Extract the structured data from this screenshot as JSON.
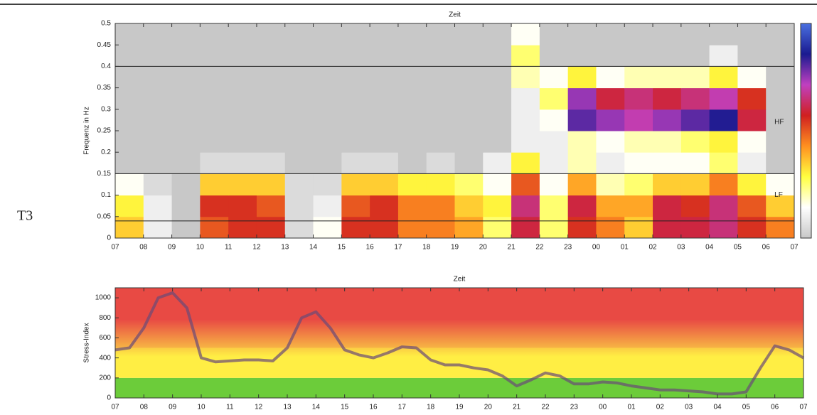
{
  "row_label": "T3",
  "chart_data": [
    {
      "type": "heatmap",
      "title": "Zeit",
      "y_label": "Frequenz in Hz",
      "xlim": [
        0,
        24
      ],
      "ylim": [
        0,
        0.5
      ],
      "xticks": [
        {
          "value": 0,
          "label": "07"
        },
        {
          "value": 1,
          "label": "08"
        },
        {
          "value": 2,
          "label": "09"
        },
        {
          "value": 3,
          "label": "10"
        },
        {
          "value": 4,
          "label": "11"
        },
        {
          "value": 5,
          "label": "12"
        },
        {
          "value": 6,
          "label": "13"
        },
        {
          "value": 7,
          "label": "14"
        },
        {
          "value": 8,
          "label": "15"
        },
        {
          "value": 9,
          "label": "16"
        },
        {
          "value": 10,
          "label": "17"
        },
        {
          "value": 11,
          "label": "18"
        },
        {
          "value": 12,
          "label": "19"
        },
        {
          "value": 13,
          "label": "20"
        },
        {
          "value": 14,
          "label": "21"
        },
        {
          "value": 15,
          "label": "22"
        },
        {
          "value": 16,
          "label": "23"
        },
        {
          "value": 17,
          "label": "00"
        },
        {
          "value": 18,
          "label": "01"
        },
        {
          "value": 19,
          "label": "02"
        },
        {
          "value": 20,
          "label": "03"
        },
        {
          "value": 21,
          "label": "04"
        },
        {
          "value": 22,
          "label": "05"
        },
        {
          "value": 23,
          "label": "06"
        },
        {
          "value": 24,
          "label": "07"
        }
      ],
      "yticks": [
        0,
        0.05,
        0.1,
        0.15,
        0.2,
        0.25,
        0.3,
        0.35,
        0.4,
        0.45,
        0.5
      ],
      "hlines": [
        0.04,
        0.15,
        0.4
      ],
      "annotations": [
        {
          "text": "HF",
          "x": 23.3,
          "y": 0.27
        },
        {
          "text": "LF",
          "x": 23.3,
          "y": 0.1
        }
      ],
      "zlim": [
        0,
        1
      ],
      "colorscale": [
        "#c8c8c8",
        "#ffffff",
        "#ffff40",
        "#ff9020",
        "#d02020",
        "#c040c0",
        "#1a1a90",
        "#4a70e0"
      ],
      "xbins": [
        0,
        1,
        2,
        3,
        4,
        5,
        6,
        7,
        8,
        9,
        10,
        11,
        12,
        13,
        14,
        15,
        16,
        17,
        18,
        19,
        20,
        21,
        22,
        23,
        24
      ],
      "ybins": [
        0,
        0.05,
        0.1,
        0.15,
        0.2,
        0.25,
        0.3,
        0.35,
        0.4,
        0.45,
        0.5
      ],
      "values": [
        [
          0.35,
          0.1,
          0,
          0.5,
          0.55,
          0.55,
          0.05,
          0.15,
          0.55,
          0.55,
          0.45,
          0.45,
          0.4,
          0.25,
          0.6,
          0.25,
          0.55,
          0.45,
          0.35,
          0.6,
          0.6,
          0.65,
          0.55,
          0.45
        ],
        [
          0.3,
          0.1,
          0,
          0.55,
          0.55,
          0.5,
          0.05,
          0.1,
          0.5,
          0.55,
          0.45,
          0.45,
          0.35,
          0.3,
          0.65,
          0.25,
          0.6,
          0.4,
          0.4,
          0.6,
          0.55,
          0.65,
          0.5,
          0.35
        ],
        [
          0.15,
          0.05,
          0,
          0.35,
          0.35,
          0.35,
          0.05,
          0.05,
          0.35,
          0.35,
          0.3,
          0.3,
          0.25,
          0.15,
          0.5,
          0.15,
          0.4,
          0.2,
          0.25,
          0.35,
          0.35,
          0.45,
          0.3,
          0.15
        ],
        [
          0,
          0,
          0,
          0.05,
          0.05,
          0.05,
          0,
          0,
          0.05,
          0.05,
          0,
          0.05,
          0,
          0.1,
          0.3,
          0.1,
          0.2,
          0.1,
          0.15,
          0.15,
          0.15,
          0.25,
          0.1,
          0
        ],
        [
          0,
          0,
          0,
          0,
          0,
          0,
          0,
          0,
          0,
          0,
          0,
          0,
          0,
          0,
          0.1,
          0.1,
          0.2,
          0.15,
          0.2,
          0.2,
          0.25,
          0.3,
          0.15,
          0
        ],
        [
          0,
          0,
          0,
          0,
          0,
          0,
          0,
          0,
          0,
          0,
          0,
          0,
          0,
          0,
          0.1,
          0.15,
          0.8,
          0.75,
          0.7,
          0.75,
          0.8,
          0.85,
          0.6,
          0
        ],
        [
          0,
          0,
          0,
          0,
          0,
          0,
          0,
          0,
          0,
          0,
          0,
          0,
          0,
          0,
          0.1,
          0.25,
          0.75,
          0.6,
          0.65,
          0.6,
          0.65,
          0.7,
          0.55,
          0
        ],
        [
          0,
          0,
          0,
          0,
          0,
          0,
          0,
          0,
          0,
          0,
          0,
          0,
          0,
          0,
          0.2,
          0.15,
          0.3,
          0.15,
          0.2,
          0.2,
          0.2,
          0.3,
          0.15,
          0
        ],
        [
          0,
          0,
          0,
          0,
          0,
          0,
          0,
          0,
          0,
          0,
          0,
          0,
          0,
          0,
          0.25,
          0,
          0,
          0,
          0,
          0,
          0,
          0.1,
          0,
          0
        ],
        [
          0,
          0,
          0,
          0,
          0,
          0,
          0,
          0,
          0,
          0,
          0,
          0,
          0,
          0,
          0.15,
          0,
          0,
          0,
          0,
          0,
          0,
          0,
          0,
          0
        ]
      ]
    },
    {
      "type": "line",
      "title": "Zeit",
      "y_label": "Stress-Index",
      "xlim": [
        0,
        24
      ],
      "ylim": [
        0,
        1100
      ],
      "xticks": [
        {
          "value": 0,
          "label": "07"
        },
        {
          "value": 1,
          "label": "08"
        },
        {
          "value": 2,
          "label": "09"
        },
        {
          "value": 3,
          "label": "10"
        },
        {
          "value": 4,
          "label": "11"
        },
        {
          "value": 5,
          "label": "12"
        },
        {
          "value": 6,
          "label": "13"
        },
        {
          "value": 7,
          "label": "14"
        },
        {
          "value": 8,
          "label": "15"
        },
        {
          "value": 9,
          "label": "16"
        },
        {
          "value": 10,
          "label": "17"
        },
        {
          "value": 11,
          "label": "18"
        },
        {
          "value": 12,
          "label": "19"
        },
        {
          "value": 13,
          "label": "20"
        },
        {
          "value": 14,
          "label": "21"
        },
        {
          "value": 15,
          "label": "22"
        },
        {
          "value": 16,
          "label": "23"
        },
        {
          "value": 17,
          "label": "00"
        },
        {
          "value": 18,
          "label": "01"
        },
        {
          "value": 19,
          "label": "02"
        },
        {
          "value": 20,
          "label": "03"
        },
        {
          "value": 21,
          "label": "04"
        },
        {
          "value": 22,
          "label": "05"
        },
        {
          "value": 23,
          "label": "06"
        },
        {
          "value": 24,
          "label": "07"
        }
      ],
      "yticks": [
        0,
        200,
        400,
        600,
        800,
        1000
      ],
      "bands": [
        {
          "from": 0,
          "to": 200,
          "color": "#6ccc3a"
        },
        {
          "from": 200,
          "to": 500,
          "color": "#ffee44"
        },
        {
          "from": 500,
          "to": 1100,
          "color": "#e84a44"
        }
      ],
      "x": [
        0,
        0.5,
        1,
        1.5,
        2,
        2.5,
        3,
        3.5,
        4,
        4.5,
        5,
        5.5,
        6,
        6.5,
        7,
        7.5,
        8,
        8.5,
        9,
        9.5,
        10,
        10.5,
        11,
        11.5,
        12,
        12.5,
        13,
        13.5,
        14,
        14.5,
        15,
        15.5,
        16,
        16.5,
        17,
        17.5,
        18,
        18.5,
        19,
        19.5,
        20,
        20.5,
        21,
        21.5,
        22,
        22.5,
        23,
        23.5,
        24
      ],
      "series": [
        {
          "color": "#6a4a78",
          "values": [
            480,
            500,
            700,
            1000,
            1050,
            900,
            400,
            360,
            370,
            380,
            380,
            370,
            500,
            800,
            860,
            700,
            480,
            430,
            400,
            450,
            510,
            500,
            380,
            330,
            330,
            300,
            280,
            220,
            120,
            180,
            250,
            220,
            140,
            140,
            160,
            150,
            120,
            100,
            80,
            80,
            70,
            60,
            40,
            40,
            60,
            300,
            520,
            480,
            400
          ]
        }
      ]
    }
  ]
}
